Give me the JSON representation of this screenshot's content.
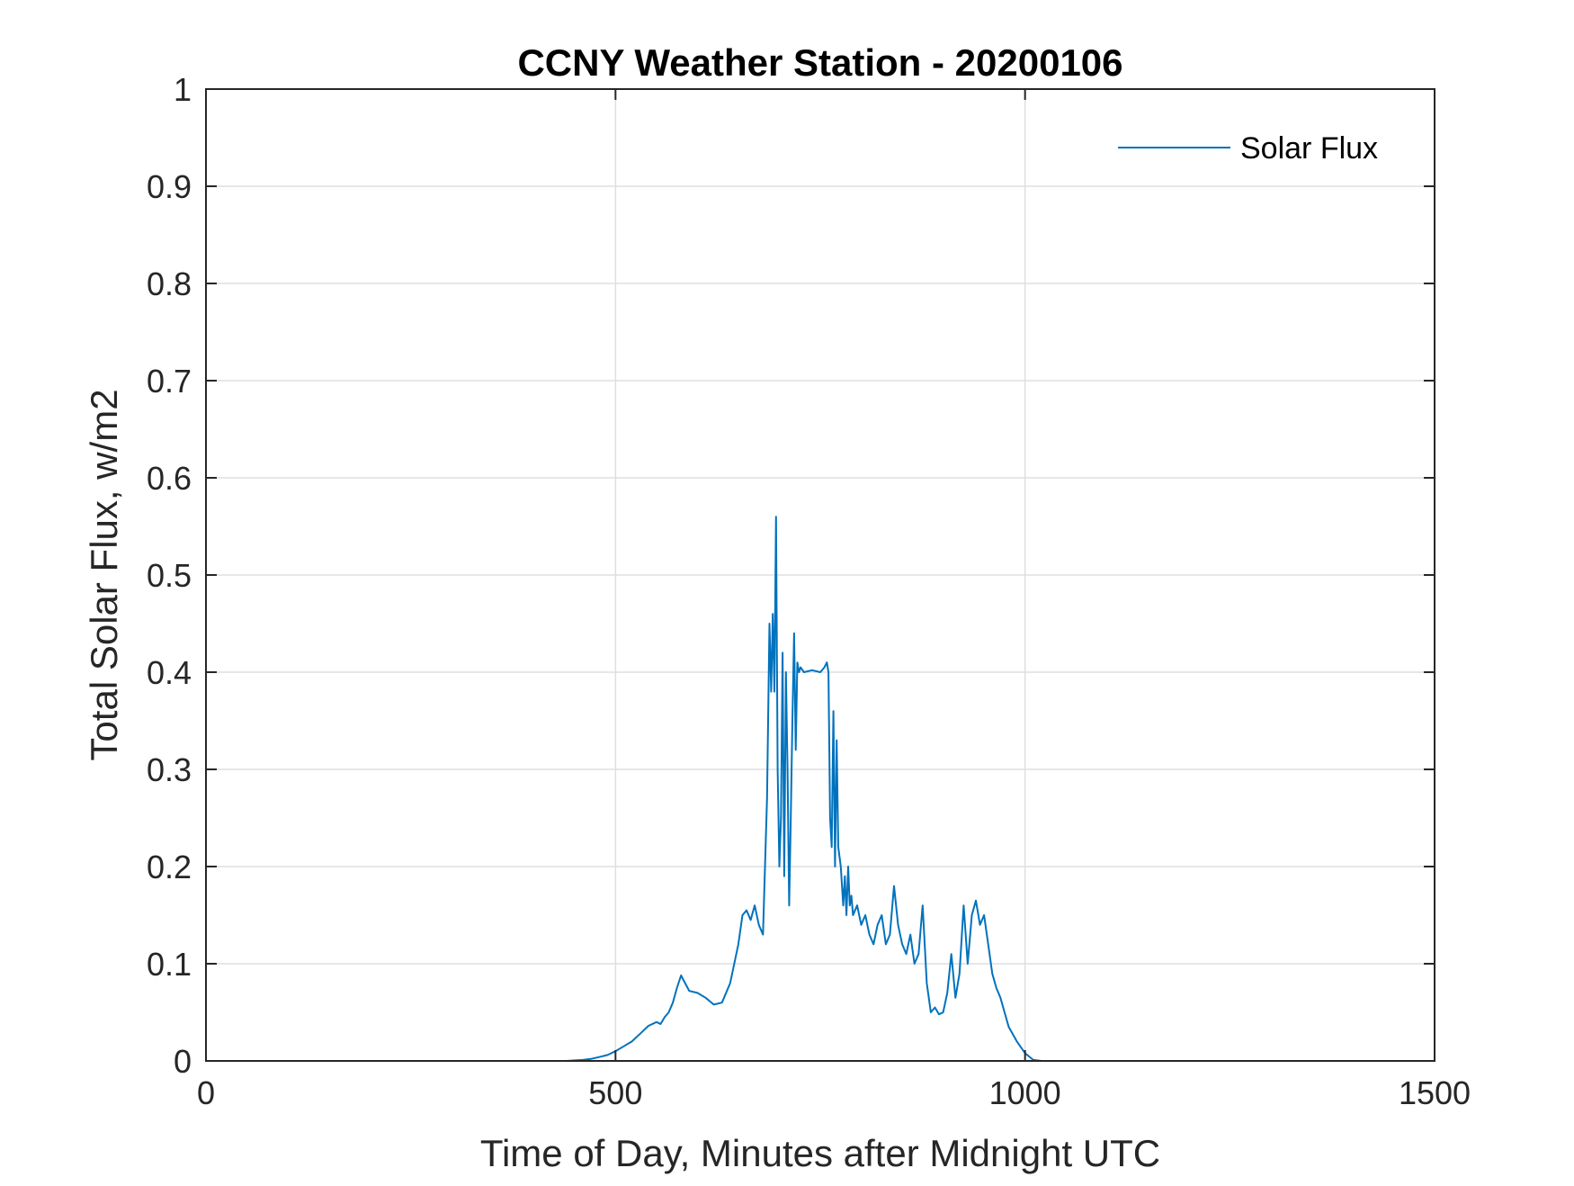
{
  "chart_data": {
    "type": "line",
    "title": "CCNY Weather Station - 20200106",
    "xlabel": "Time of Day, Minutes after Midnight UTC",
    "ylabel": "Total Solar Flux, w/m2",
    "xlim": [
      0,
      1500
    ],
    "ylim": [
      0,
      1
    ],
    "xticks": [
      0,
      500,
      1000,
      1500
    ],
    "xtick_labels": [
      "0",
      "500",
      "1000",
      "1500"
    ],
    "yticks": [
      0,
      0.1,
      0.2,
      0.3,
      0.4,
      0.5,
      0.6,
      0.7,
      0.8,
      0.9,
      1
    ],
    "ytick_labels": [
      "0",
      "0.1",
      "0.2",
      "0.3",
      "0.4",
      "0.5",
      "0.6",
      "0.7",
      "0.8",
      "0.9",
      "1"
    ],
    "grid": true,
    "legend_location": "top-right",
    "series": [
      {
        "name": "Solar Flux",
        "color": "#0072BD",
        "x": [
          0,
          440,
          460,
          470,
          480,
          490,
          500,
          510,
          520,
          530,
          540,
          550,
          555,
          560,
          565,
          570,
          575,
          580,
          590,
          600,
          610,
          620,
          630,
          640,
          650,
          655,
          660,
          665,
          670,
          675,
          680,
          685,
          688,
          690,
          692,
          694,
          696,
          698,
          700,
          702,
          704,
          706,
          708,
          710,
          712,
          714,
          716,
          718,
          720,
          722,
          724,
          726,
          730,
          740,
          750,
          755,
          758,
          760,
          762,
          764,
          766,
          768,
          770,
          772,
          775,
          778,
          780,
          782,
          784,
          786,
          788,
          790,
          795,
          800,
          805,
          810,
          815,
          820,
          825,
          830,
          835,
          840,
          845,
          850,
          855,
          860,
          865,
          870,
          875,
          880,
          885,
          890,
          895,
          900,
          905,
          910,
          915,
          920,
          925,
          930,
          935,
          940,
          945,
          950,
          955,
          960,
          965,
          970,
          975,
          980,
          990,
          1000,
          1010,
          1020,
          1030,
          1100,
          1200,
          1300,
          1440
        ],
        "values": [
          0,
          0,
          0.001,
          0.002,
          0.004,
          0.006,
          0.01,
          0.015,
          0.02,
          0.028,
          0.036,
          0.04,
          0.038,
          0.045,
          0.05,
          0.06,
          0.075,
          0.088,
          0.072,
          0.07,
          0.065,
          0.058,
          0.06,
          0.08,
          0.12,
          0.15,
          0.155,
          0.145,
          0.16,
          0.14,
          0.13,
          0.27,
          0.45,
          0.38,
          0.46,
          0.38,
          0.56,
          0.3,
          0.2,
          0.25,
          0.42,
          0.19,
          0.4,
          0.3,
          0.16,
          0.25,
          0.35,
          0.44,
          0.32,
          0.41,
          0.4,
          0.405,
          0.4,
          0.402,
          0.4,
          0.405,
          0.41,
          0.4,
          0.25,
          0.22,
          0.36,
          0.2,
          0.33,
          0.22,
          0.2,
          0.16,
          0.19,
          0.15,
          0.2,
          0.16,
          0.17,
          0.15,
          0.16,
          0.14,
          0.15,
          0.13,
          0.12,
          0.14,
          0.15,
          0.12,
          0.13,
          0.18,
          0.14,
          0.12,
          0.11,
          0.13,
          0.1,
          0.11,
          0.16,
          0.08,
          0.05,
          0.055,
          0.048,
          0.05,
          0.07,
          0.11,
          0.065,
          0.09,
          0.16,
          0.1,
          0.15,
          0.165,
          0.14,
          0.15,
          0.12,
          0.09,
          0.075,
          0.065,
          0.05,
          0.035,
          0.02,
          0.008,
          0.001,
          0,
          0,
          0,
          0,
          0,
          0
        ]
      }
    ]
  }
}
